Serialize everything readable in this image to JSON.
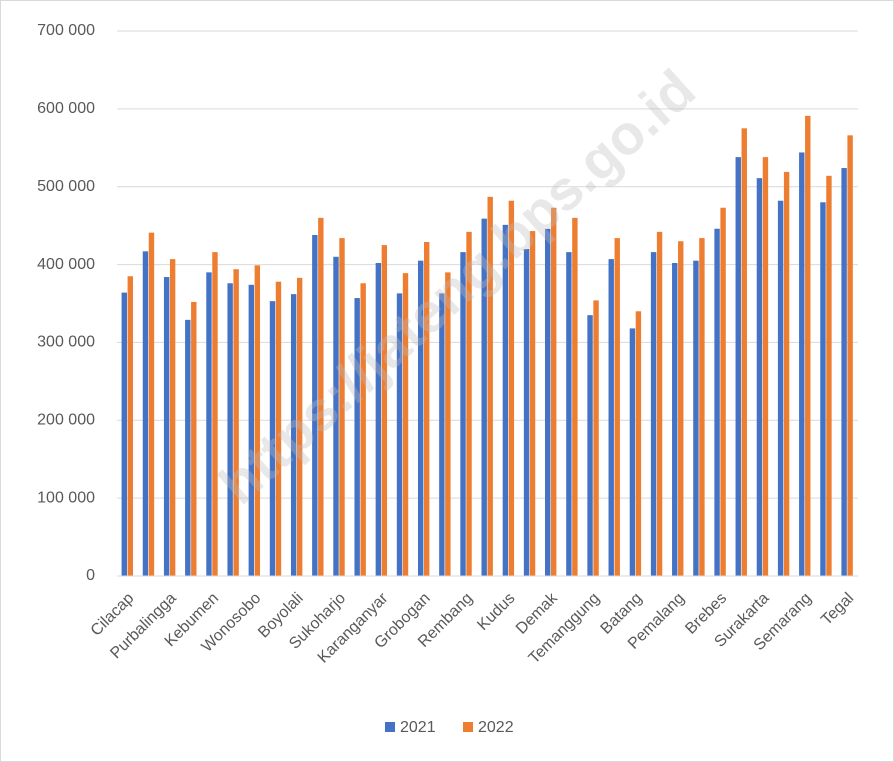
{
  "chart_data": {
    "type": "bar",
    "watermark": "https://jateng.bps.go.id",
    "categories": [
      "Cilacap",
      null,
      "Purbalingga",
      null,
      "Kebumen",
      null,
      "Wonosobo",
      null,
      "Boyolali",
      null,
      "Sukoharjo",
      null,
      "Karanganyar",
      null,
      "Grobogan",
      null,
      "Rembang",
      null,
      "Kudus",
      null,
      "Demak",
      null,
      "Temanggung",
      null,
      "Batang",
      null,
      "Pemalang",
      null,
      "Brebes",
      null,
      "Surakarta",
      null,
      "Semarang",
      null,
      "Tegal"
    ],
    "series": [
      {
        "name": "2021",
        "color": "#4472c4",
        "values": [
          364000,
          417000,
          384000,
          329000,
          390000,
          376000,
          374000,
          353000,
          362000,
          438000,
          410000,
          357000,
          402000,
          363000,
          405000,
          363000,
          416000,
          459000,
          451000,
          420000,
          446000,
          416000,
          335000,
          407000,
          318000,
          416000,
          402000,
          405000,
          446000,
          538000,
          511000,
          482000,
          544000,
          480000,
          524000
        ]
      },
      {
        "name": "2022",
        "color": "#ed7d31",
        "values": [
          385000,
          441000,
          407000,
          352000,
          416000,
          394000,
          399000,
          378000,
          383000,
          460000,
          434000,
          376000,
          425000,
          389000,
          429000,
          390000,
          442000,
          487000,
          482000,
          443000,
          473000,
          460000,
          354000,
          434000,
          340000,
          442000,
          430000,
          434000,
          473000,
          575000,
          538000,
          519000,
          591000,
          514000,
          566000
        ]
      }
    ],
    "ylim": [
      0,
      700000
    ],
    "yticks": [
      0,
      {
        "value": 100000,
        "label": "100 000"
      },
      {
        "value": 200000,
        "label": "200 000"
      },
      {
        "value": 300000,
        "label": "300 000"
      },
      {
        "value": 400000,
        "label": "400 000"
      },
      {
        "value": 500000,
        "label": "500 000"
      },
      {
        "value": 600000,
        "label": "600 000"
      },
      {
        "value": 700000,
        "label": "700 000"
      }
    ],
    "grid": true,
    "legend": "bottom"
  }
}
